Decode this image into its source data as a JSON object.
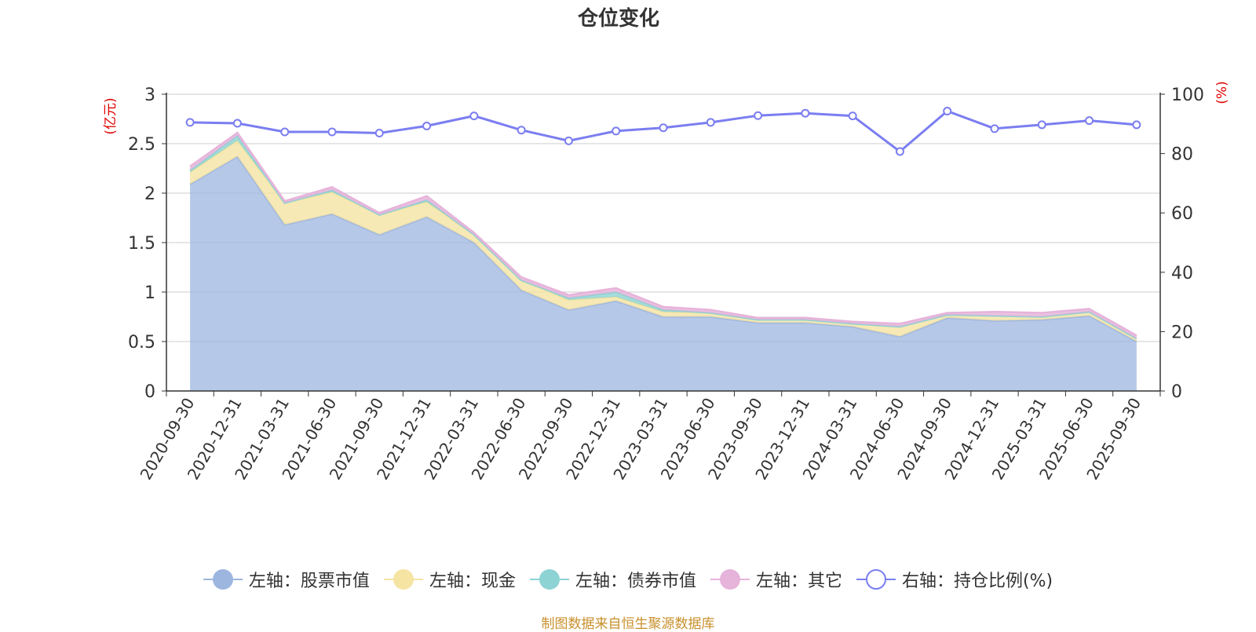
{
  "source_note": "制图数据来自恒生聚源数据库",
  "chart_data": {
    "type": "area",
    "title": "仓位变化",
    "left_axis_unit": "(亿元)",
    "right_axis_unit": "(%)",
    "ylim_left": [
      0,
      3
    ],
    "ylim_right": [
      0,
      100
    ],
    "left_ticks": [
      "0",
      "0.5",
      "1",
      "1.5",
      "2",
      "2.5",
      "3"
    ],
    "right_ticks": [
      "0",
      "20",
      "40",
      "60",
      "80",
      "100"
    ],
    "categories": [
      "2020-09-30",
      "2020-12-31",
      "2021-03-31",
      "2021-06-30",
      "2021-09-30",
      "2021-12-31",
      "2022-03-31",
      "2022-06-30",
      "2022-09-30",
      "2022-12-31",
      "2023-03-31",
      "2023-06-30",
      "2023-09-30",
      "2023-12-31",
      "2024-03-31",
      "2024-06-30",
      "2024-09-30",
      "2024-12-31",
      "2025-03-31",
      "2025-06-30",
      "2025-09-30"
    ],
    "series": [
      {
        "name": "左轴：股票市值",
        "axis": "left",
        "color": "#9db6e0",
        "values": [
          2.09,
          2.37,
          1.68,
          1.79,
          1.58,
          1.76,
          1.5,
          1.02,
          0.82,
          0.91,
          0.75,
          0.75,
          0.69,
          0.69,
          0.65,
          0.55,
          0.74,
          0.71,
          0.72,
          0.76,
          0.5
        ]
      },
      {
        "name": "左轴：现金",
        "axis": "left",
        "color": "#f5e4a2",
        "values": [
          0.12,
          0.16,
          0.22,
          0.22,
          0.2,
          0.15,
          0.08,
          0.1,
          0.1,
          0.04,
          0.05,
          0.04,
          0.03,
          0.03,
          0.03,
          0.1,
          0.03,
          0.05,
          0.03,
          0.04,
          0.03
        ]
      },
      {
        "name": "左轴：债券市值",
        "axis": "left",
        "color": "#8dd3d3",
        "values": [
          0.02,
          0.05,
          0.0,
          0.02,
          0.0,
          0.02,
          0.0,
          0.0,
          0.02,
          0.05,
          0.02,
          0.0,
          0.0,
          0.0,
          0.0,
          0.0,
          0.0,
          0.0,
          0.0,
          0.0,
          0.0
        ]
      },
      {
        "name": "左轴：其它",
        "axis": "left",
        "color": "#e6b3da",
        "values": [
          0.04,
          0.03,
          0.02,
          0.03,
          0.02,
          0.04,
          0.02,
          0.03,
          0.03,
          0.04,
          0.03,
          0.03,
          0.02,
          0.02,
          0.02,
          0.03,
          0.02,
          0.04,
          0.04,
          0.03,
          0.03
        ]
      },
      {
        "name": "右轴：持仓比例(%)",
        "axis": "right",
        "color": "#7b7ef0",
        "values": [
          90.5,
          90.2,
          87.3,
          87.3,
          86.9,
          89.3,
          92.7,
          87.9,
          84.3,
          87.6,
          88.7,
          90.5,
          92.8,
          93.6,
          92.7,
          80.7,
          94.3,
          88.4,
          89.7,
          91.1,
          89.7
        ]
      }
    ]
  }
}
